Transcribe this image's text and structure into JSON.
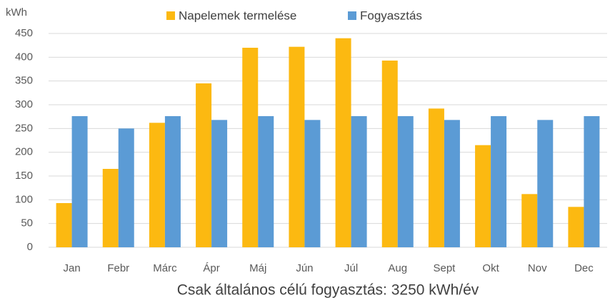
{
  "chart_data": {
    "type": "bar",
    "y_label": "kWh",
    "x_label": "Csak általános célú fogyasztás: 3250 kWh/év",
    "categories": [
      "Jan",
      "Febr",
      "Márc",
      "Ápr",
      "Máj",
      "Jún",
      "Júl",
      "Aug",
      "Sept",
      "Okt",
      "Nov",
      "Dec"
    ],
    "series": [
      {
        "name": "Napelemek termelése",
        "color": "#fcb911",
        "values": [
          93,
          165,
          262,
          345,
          420,
          422,
          440,
          393,
          292,
          215,
          112,
          85
        ]
      },
      {
        "name": "Fogyasztás",
        "color": "#5b9bd5",
        "values": [
          276,
          250,
          276,
          268,
          276,
          268,
          276,
          276,
          268,
          276,
          268,
          276
        ]
      }
    ],
    "ylim": [
      0,
      450
    ],
    "yticks": [
      0,
      50,
      100,
      150,
      200,
      250,
      300,
      350,
      400,
      450
    ],
    "grid": true,
    "legend": "top"
  }
}
